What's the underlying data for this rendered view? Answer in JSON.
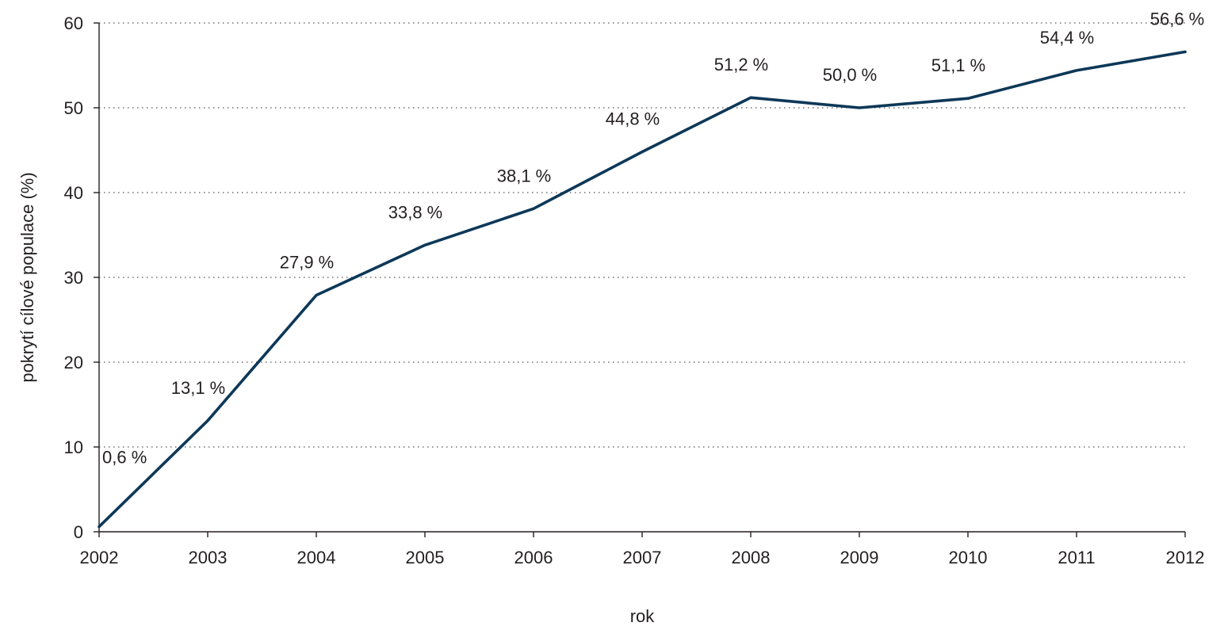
{
  "chart_data": {
    "type": "line",
    "x": [
      "2002",
      "2003",
      "2004",
      "2005",
      "2006",
      "2007",
      "2008",
      "2009",
      "2010",
      "2011",
      "2012"
    ],
    "series": [
      {
        "values": [
          0.6,
          13.1,
          27.9,
          33.8,
          38.1,
          44.8,
          51.2,
          50.0,
          51.1,
          54.4,
          56.6
        ],
        "labels": [
          "0,6 %",
          "13,1 %",
          "27,9 %",
          "33,8 %",
          "38,1 %",
          "44,8 %",
          "51,2 %",
          "50,0 %",
          "51,1 %",
          "54,4 %",
          "56,6 %"
        ]
      }
    ],
    "xlabel": "rok",
    "ylabel": "pokrytí cílové populace (%)",
    "ylim": [
      0,
      60
    ],
    "yticks": [
      "0",
      "10",
      "20",
      "30",
      "40",
      "50",
      "60"
    ],
    "grid": true,
    "colors": {
      "line": "#0d3858",
      "text": "#231f20"
    }
  }
}
